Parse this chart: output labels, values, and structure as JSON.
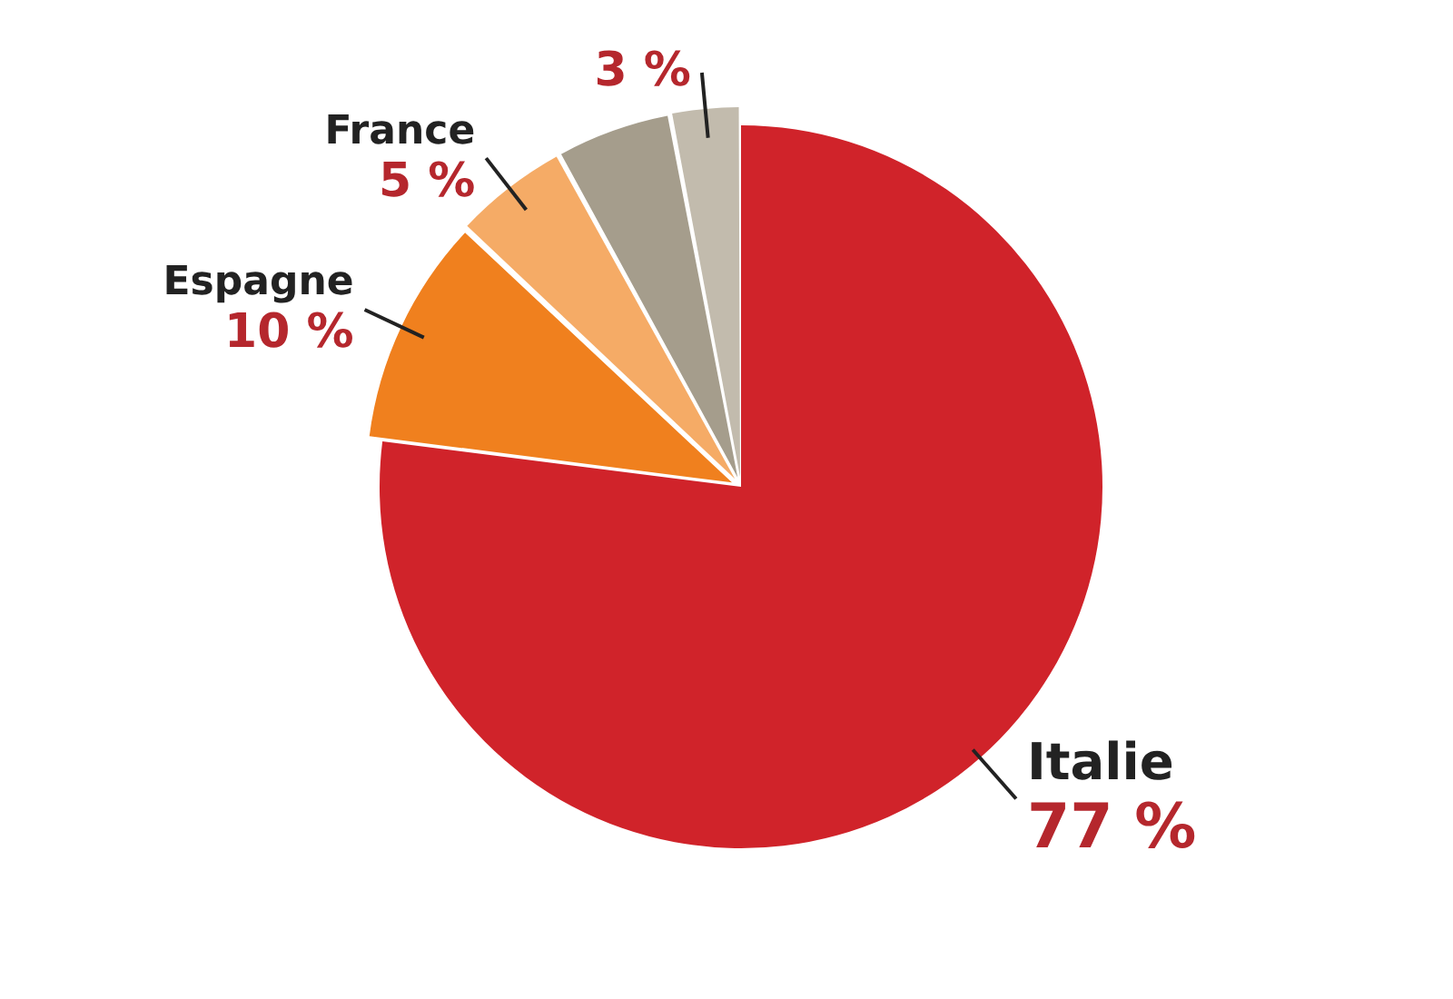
{
  "chart_data": {
    "type": "pie",
    "categories": [
      "Italie",
      "Espagne",
      "France",
      null,
      null
    ],
    "values": [
      77,
      10,
      5,
      5,
      3
    ],
    "colors": [
      "#d0232a",
      "#f0801e",
      "#f5ab66",
      "#a59d8c",
      "#c2bbad"
    ],
    "value_labels": [
      "77 %",
      "10 %",
      "5 %",
      null,
      "3 %"
    ],
    "legend": false
  }
}
